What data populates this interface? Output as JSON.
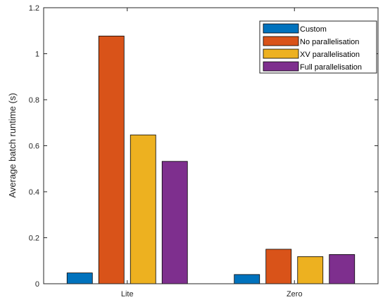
{
  "chart_data": {
    "type": "bar",
    "title": "",
    "xlabel": "",
    "ylabel": "Average batch runtime (s)",
    "categories": [
      "Lite",
      "Zero"
    ],
    "ylim": [
      0,
      1.2
    ],
    "yticks": [
      0,
      0.2,
      0.4,
      0.6,
      0.8,
      1,
      1.2
    ],
    "ytick_labels": [
      "0",
      "0.2",
      "0.4",
      "0.6",
      "0.8",
      "1",
      "1.2"
    ],
    "grid": false,
    "legend_position": "top-right",
    "series": [
      {
        "name": "Custom",
        "color": "#0072BD",
        "values": [
          0.047,
          0.04
        ]
      },
      {
        "name": "No parallelisation",
        "color": "#D95319",
        "values": [
          1.077,
          0.15
        ]
      },
      {
        "name": "XV parallelisation",
        "color": "#EDB120",
        "values": [
          0.647,
          0.118
        ]
      },
      {
        "name": "Full parallelisation",
        "color": "#7E2F8E",
        "values": [
          0.532,
          0.127
        ]
      }
    ]
  }
}
